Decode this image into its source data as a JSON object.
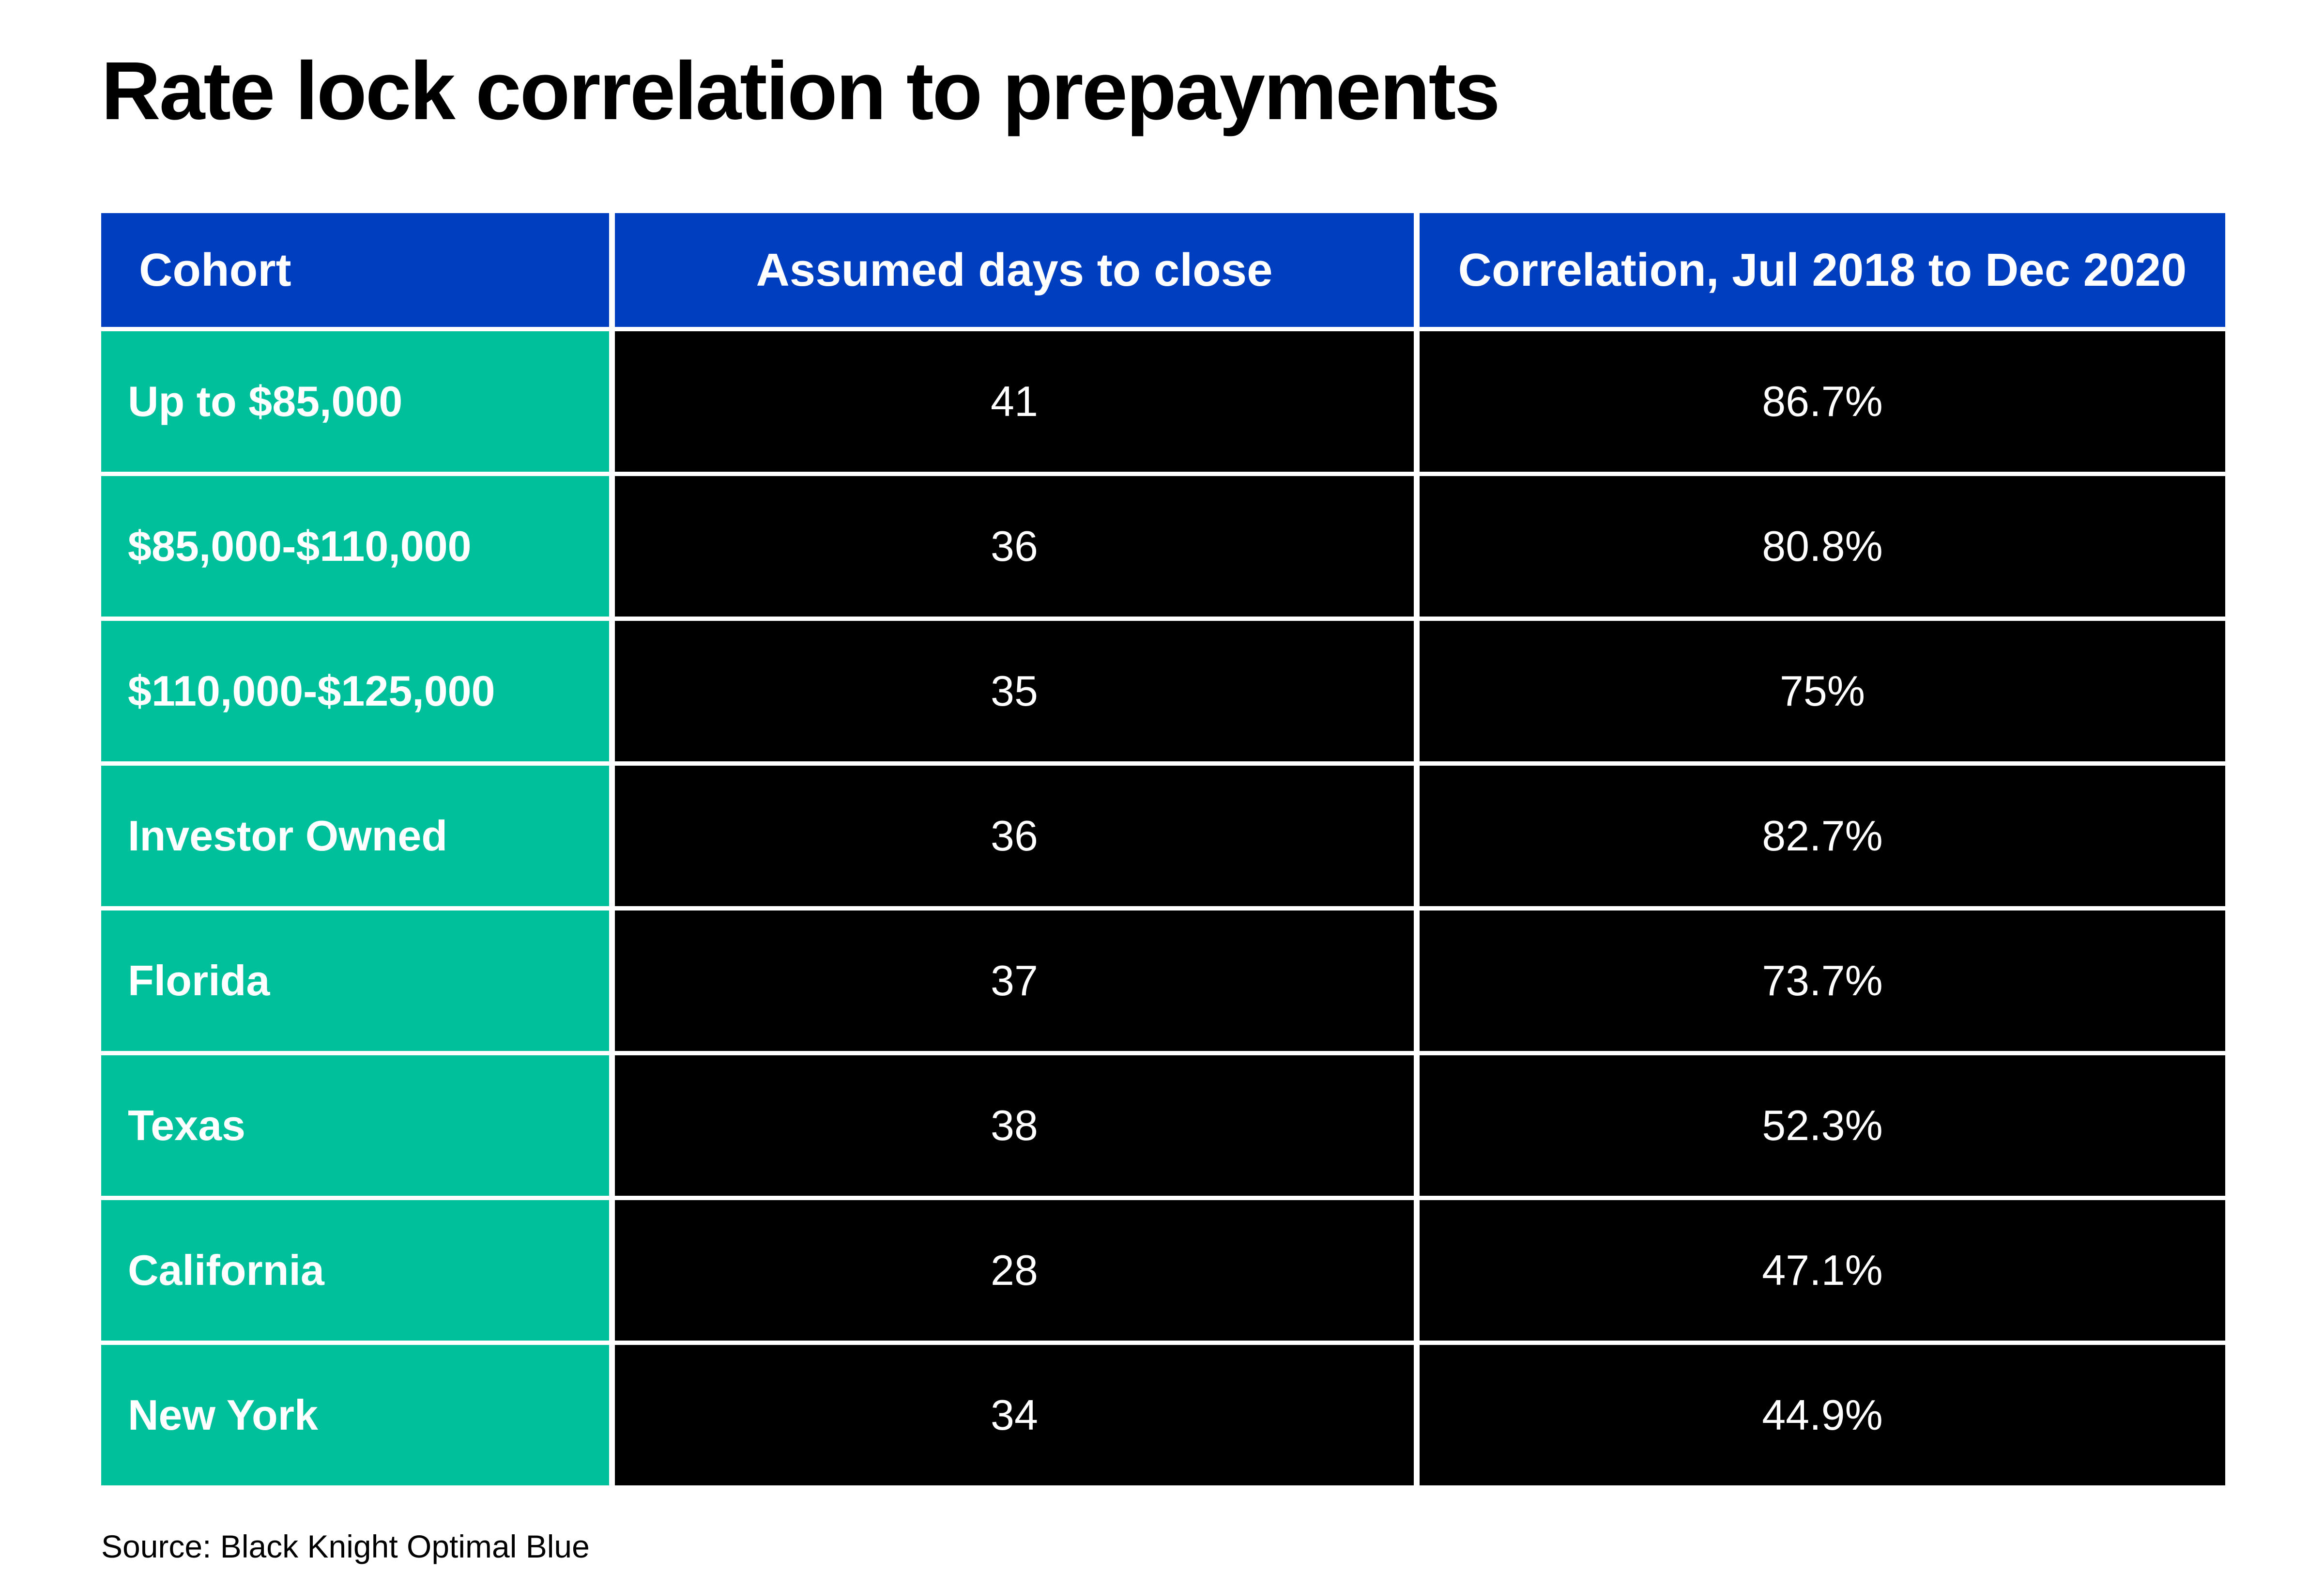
{
  "title": "Rate lock correlation to prepayments",
  "colors": {
    "header_bg": "#003ec0",
    "label_bg": "#00c09c",
    "value_bg": "#000000",
    "text_light": "#ffffff"
  },
  "chart_data": {
    "type": "table",
    "title": "Rate lock correlation to prepayments",
    "columns": [
      "Cohort",
      "Assumed days to close",
      "Correlation, Jul 2018 to Dec 2020"
    ],
    "rows": [
      [
        "Up to $85,000",
        "41",
        "86.7%"
      ],
      [
        "$85,000-$110,000",
        "36",
        "80.8%"
      ],
      [
        "$110,000-$125,000",
        "35",
        "75%"
      ],
      [
        "Investor Owned",
        "36",
        "82.7%"
      ],
      [
        "Florida",
        "37",
        "73.7%"
      ],
      [
        "Texas",
        "38",
        "52.3%"
      ],
      [
        "California",
        "28",
        "47.1%"
      ],
      [
        "New York",
        "34",
        "44.9%"
      ]
    ]
  },
  "source": "Source: Black Knight Optimal Blue"
}
